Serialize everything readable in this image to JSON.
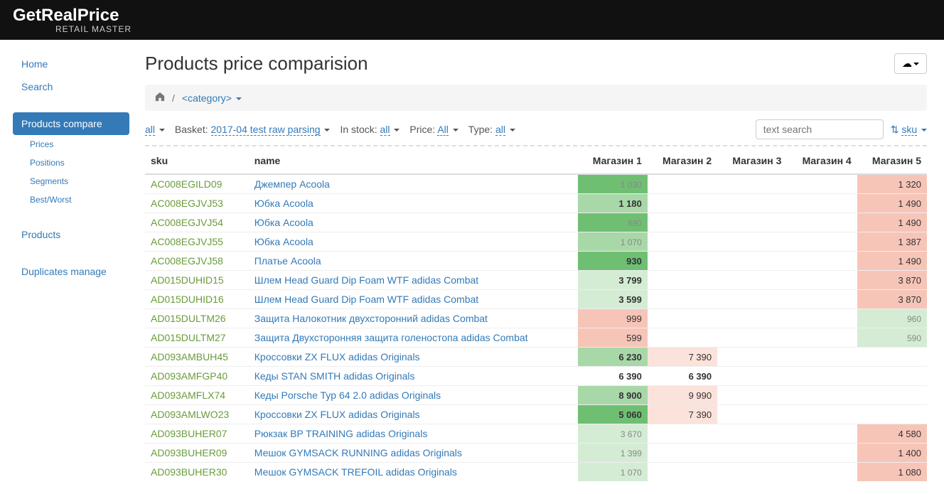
{
  "header": {
    "title": "GetRealPrice",
    "subtitle": "RETAIL MASTER"
  },
  "sidebar": {
    "top": [
      {
        "label": "Home"
      },
      {
        "label": "Search"
      }
    ],
    "compare": {
      "label": "Products compare",
      "subs": [
        {
          "label": "Prices"
        },
        {
          "label": "Positions"
        },
        {
          "label": "Segments"
        },
        {
          "label": "Best/Worst"
        }
      ]
    },
    "products": {
      "label": "Products"
    },
    "duplicates": {
      "label": "Duplicates manage"
    }
  },
  "page": {
    "title": "Products price comparision",
    "breadcrumb_category": "<category>"
  },
  "filters": {
    "all": "all",
    "basket_label": "Basket:",
    "basket_value": "2017-04 test raw parsing",
    "instock_label": "In stock:",
    "instock_value": "all",
    "price_label": "Price:",
    "price_value": "All",
    "type_label": "Type:",
    "type_value": "all",
    "search_placeholder": "text search",
    "sort_value": "sku"
  },
  "columns": [
    "sku",
    "name",
    "Магазин 1",
    "Магазин 2",
    "Магазин 3",
    "Магазин 4",
    "Магазин 5"
  ],
  "colors": {
    "green_dark": "#6fbf73",
    "green_mid": "#a8d8a8",
    "green_light": "#d4ecd4",
    "red_light": "#f6c5b8",
    "red_very_light": "#fbe2db"
  },
  "rows": [
    {
      "sku": "AC008EGILD09",
      "name": "Джемпер Acoola",
      "cells": [
        {
          "v": "1 030",
          "bg": "green_dark",
          "muted": true
        },
        {
          "v": ""
        },
        {
          "v": ""
        },
        {
          "v": ""
        },
        {
          "v": "1 320",
          "bg": "red_light"
        }
      ]
    },
    {
      "sku": "AC008EGJVJ53",
      "name": "Юбка Acoola",
      "cells": [
        {
          "v": "1 180",
          "bg": "green_mid",
          "bold": true
        },
        {
          "v": ""
        },
        {
          "v": ""
        },
        {
          "v": ""
        },
        {
          "v": "1 490",
          "bg": "red_light"
        }
      ]
    },
    {
      "sku": "AC008EGJVJ54",
      "name": "Юбка Acoola",
      "cells": [
        {
          "v": "890",
          "bg": "green_dark",
          "muted": true
        },
        {
          "v": ""
        },
        {
          "v": ""
        },
        {
          "v": ""
        },
        {
          "v": "1 490",
          "bg": "red_light"
        }
      ]
    },
    {
      "sku": "AC008EGJVJ55",
      "name": "Юбка Acoola",
      "cells": [
        {
          "v": "1 070",
          "bg": "green_mid",
          "muted": true
        },
        {
          "v": ""
        },
        {
          "v": ""
        },
        {
          "v": ""
        },
        {
          "v": "1 387",
          "bg": "red_light"
        }
      ]
    },
    {
      "sku": "AC008EGJVJ58",
      "name": "Платье Acoola",
      "cells": [
        {
          "v": "930",
          "bg": "green_dark",
          "bold": true
        },
        {
          "v": ""
        },
        {
          "v": ""
        },
        {
          "v": ""
        },
        {
          "v": "1 490",
          "bg": "red_light"
        }
      ]
    },
    {
      "sku": "AD015DUHID15",
      "name": "Шлем Head Guard Dip Foam WTF adidas Combat",
      "cells": [
        {
          "v": "3 799",
          "bg": "green_light",
          "bold": true
        },
        {
          "v": ""
        },
        {
          "v": ""
        },
        {
          "v": ""
        },
        {
          "v": "3 870",
          "bg": "red_light"
        }
      ]
    },
    {
      "sku": "AD015DUHID16",
      "name": "Шлем Head Guard Dip Foam WTF adidas Combat",
      "cells": [
        {
          "v": "3 599",
          "bg": "green_light",
          "bold": true
        },
        {
          "v": ""
        },
        {
          "v": ""
        },
        {
          "v": ""
        },
        {
          "v": "3 870",
          "bg": "red_light"
        }
      ]
    },
    {
      "sku": "AD015DULTM26",
      "name": "Защита Налокотник двухсторонний adidas Combat",
      "cells": [
        {
          "v": "999",
          "bg": "red_light"
        },
        {
          "v": ""
        },
        {
          "v": ""
        },
        {
          "v": ""
        },
        {
          "v": "960",
          "bg": "green_light",
          "muted": true
        }
      ]
    },
    {
      "sku": "AD015DULTM27",
      "name": "Защита Двухсторонняя защита голеностопа adidas Combat",
      "cells": [
        {
          "v": "599",
          "bg": "red_light"
        },
        {
          "v": ""
        },
        {
          "v": ""
        },
        {
          "v": ""
        },
        {
          "v": "590",
          "bg": "green_light",
          "muted": true
        }
      ]
    },
    {
      "sku": "AD093AMBUH45",
      "name": "Кроссовки ZX FLUX adidas Originals",
      "cells": [
        {
          "v": "6 230",
          "bg": "green_mid",
          "bold": true
        },
        {
          "v": "7 390",
          "bg": "red_very_light"
        },
        {
          "v": ""
        },
        {
          "v": ""
        },
        {
          "v": ""
        }
      ]
    },
    {
      "sku": "AD093AMFGP40",
      "name": "Кеды STAN SMITH adidas Originals",
      "cells": [
        {
          "v": "6 390",
          "bold": true
        },
        {
          "v": "6 390",
          "bold": true
        },
        {
          "v": ""
        },
        {
          "v": ""
        },
        {
          "v": ""
        }
      ]
    },
    {
      "sku": "AD093AMFLX74",
      "name": "Кеды Porsche Typ 64 2.0 adidas Originals",
      "cells": [
        {
          "v": "8 900",
          "bg": "green_mid",
          "bold": true
        },
        {
          "v": "9 990",
          "bg": "red_very_light"
        },
        {
          "v": ""
        },
        {
          "v": ""
        },
        {
          "v": ""
        }
      ]
    },
    {
      "sku": "AD093AMLWO23",
      "name": "Кроссовки ZX FLUX adidas Originals",
      "cells": [
        {
          "v": "5 060",
          "bg": "green_dark",
          "bold": true
        },
        {
          "v": "7 390",
          "bg": "red_very_light"
        },
        {
          "v": ""
        },
        {
          "v": ""
        },
        {
          "v": ""
        }
      ]
    },
    {
      "sku": "AD093BUHER07",
      "name": "Рюкзак BP TRAINING adidas Originals",
      "cells": [
        {
          "v": "3 670",
          "bg": "green_light",
          "muted": true
        },
        {
          "v": ""
        },
        {
          "v": ""
        },
        {
          "v": ""
        },
        {
          "v": "4 580",
          "bg": "red_light"
        }
      ]
    },
    {
      "sku": "AD093BUHER09",
      "name": "Мешок GYMSACK RUNNING adidas Originals",
      "cells": [
        {
          "v": "1 399",
          "bg": "green_light",
          "muted": true
        },
        {
          "v": ""
        },
        {
          "v": ""
        },
        {
          "v": ""
        },
        {
          "v": "1 400",
          "bg": "red_light"
        }
      ]
    },
    {
      "sku": "AD093BUHER30",
      "name": "Мешок GYMSACK TREFOIL adidas Originals",
      "cells": [
        {
          "v": "1 070",
          "bg": "green_light",
          "muted": true
        },
        {
          "v": ""
        },
        {
          "v": ""
        },
        {
          "v": ""
        },
        {
          "v": "1 080",
          "bg": "red_light"
        }
      ]
    }
  ]
}
